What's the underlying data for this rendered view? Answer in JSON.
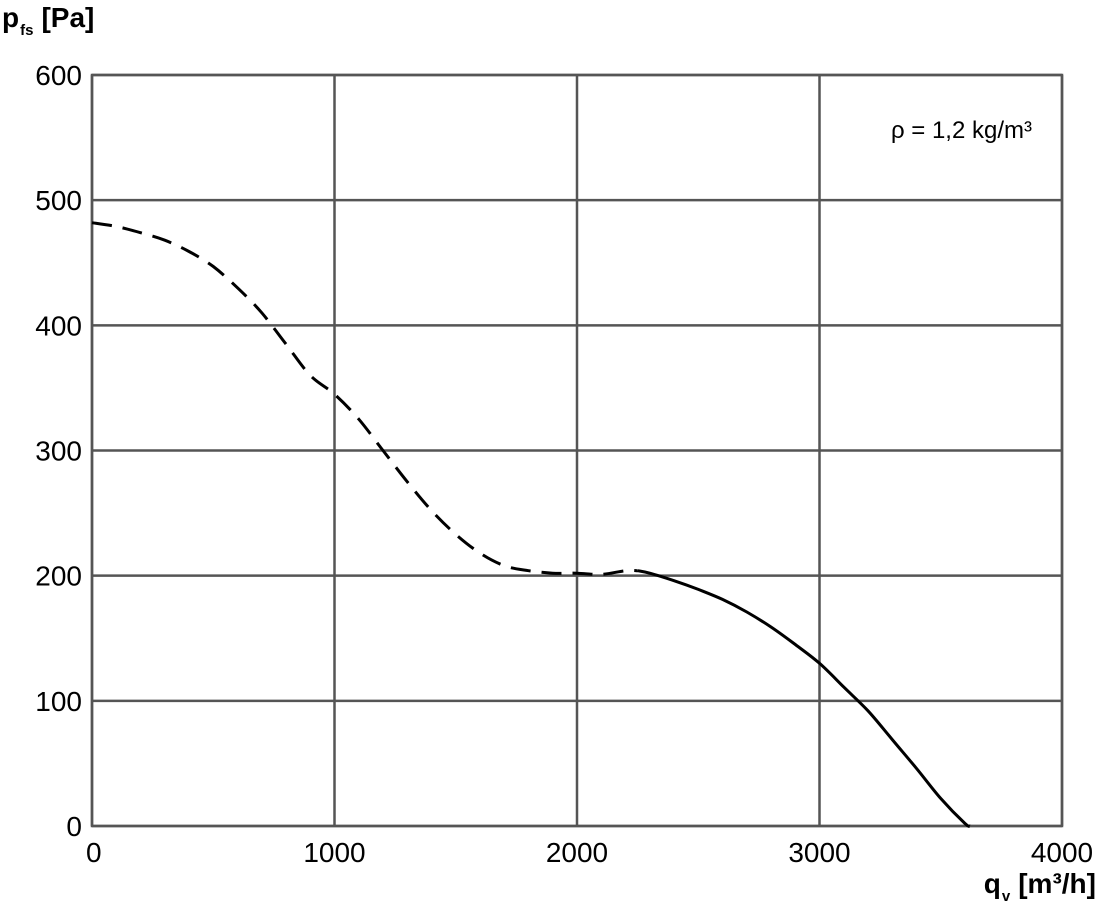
{
  "chart_data": {
    "type": "line",
    "title": "",
    "ylabel": {
      "main": "p",
      "sub": "fs",
      "unit": "[Pa]"
    },
    "xlabel": {
      "main": "q",
      "sub": "v",
      "unit": "[m³/h]"
    },
    "xlim": [
      0,
      4000
    ],
    "ylim": [
      0,
      600
    ],
    "xticks": [
      0,
      1000,
      2000,
      3000,
      4000
    ],
    "yticks": [
      0,
      100,
      200,
      300,
      400,
      500,
      600
    ],
    "grid": true,
    "annotation": "ρ = 1,2 kg/m³",
    "series": [
      {
        "style": "dashed",
        "x": [
          0,
          100,
          200,
          300,
          400,
          500,
          600,
          700,
          800,
          900,
          1000,
          1100,
          1200,
          1300,
          1400,
          1500,
          1600,
          1700,
          1800,
          1900,
          2000,
          2100,
          2200,
          2250
        ],
        "y": [
          482,
          479,
          474,
          468,
          459,
          447,
          430,
          410,
          385,
          360,
          345,
          325,
          300,
          275,
          252,
          233,
          218,
          208,
          204,
          202,
          202,
          201,
          204,
          204
        ]
      },
      {
        "style": "solid",
        "x": [
          2250,
          2300,
          2400,
          2500,
          2600,
          2700,
          2800,
          2900,
          3000,
          3100,
          3200,
          3300,
          3400,
          3500,
          3600,
          3620
        ],
        "y": [
          204,
          202,
          196,
          189,
          181,
          171,
          159,
          145,
          130,
          111,
          92,
          69,
          46,
          22,
          2,
          0
        ]
      }
    ]
  }
}
